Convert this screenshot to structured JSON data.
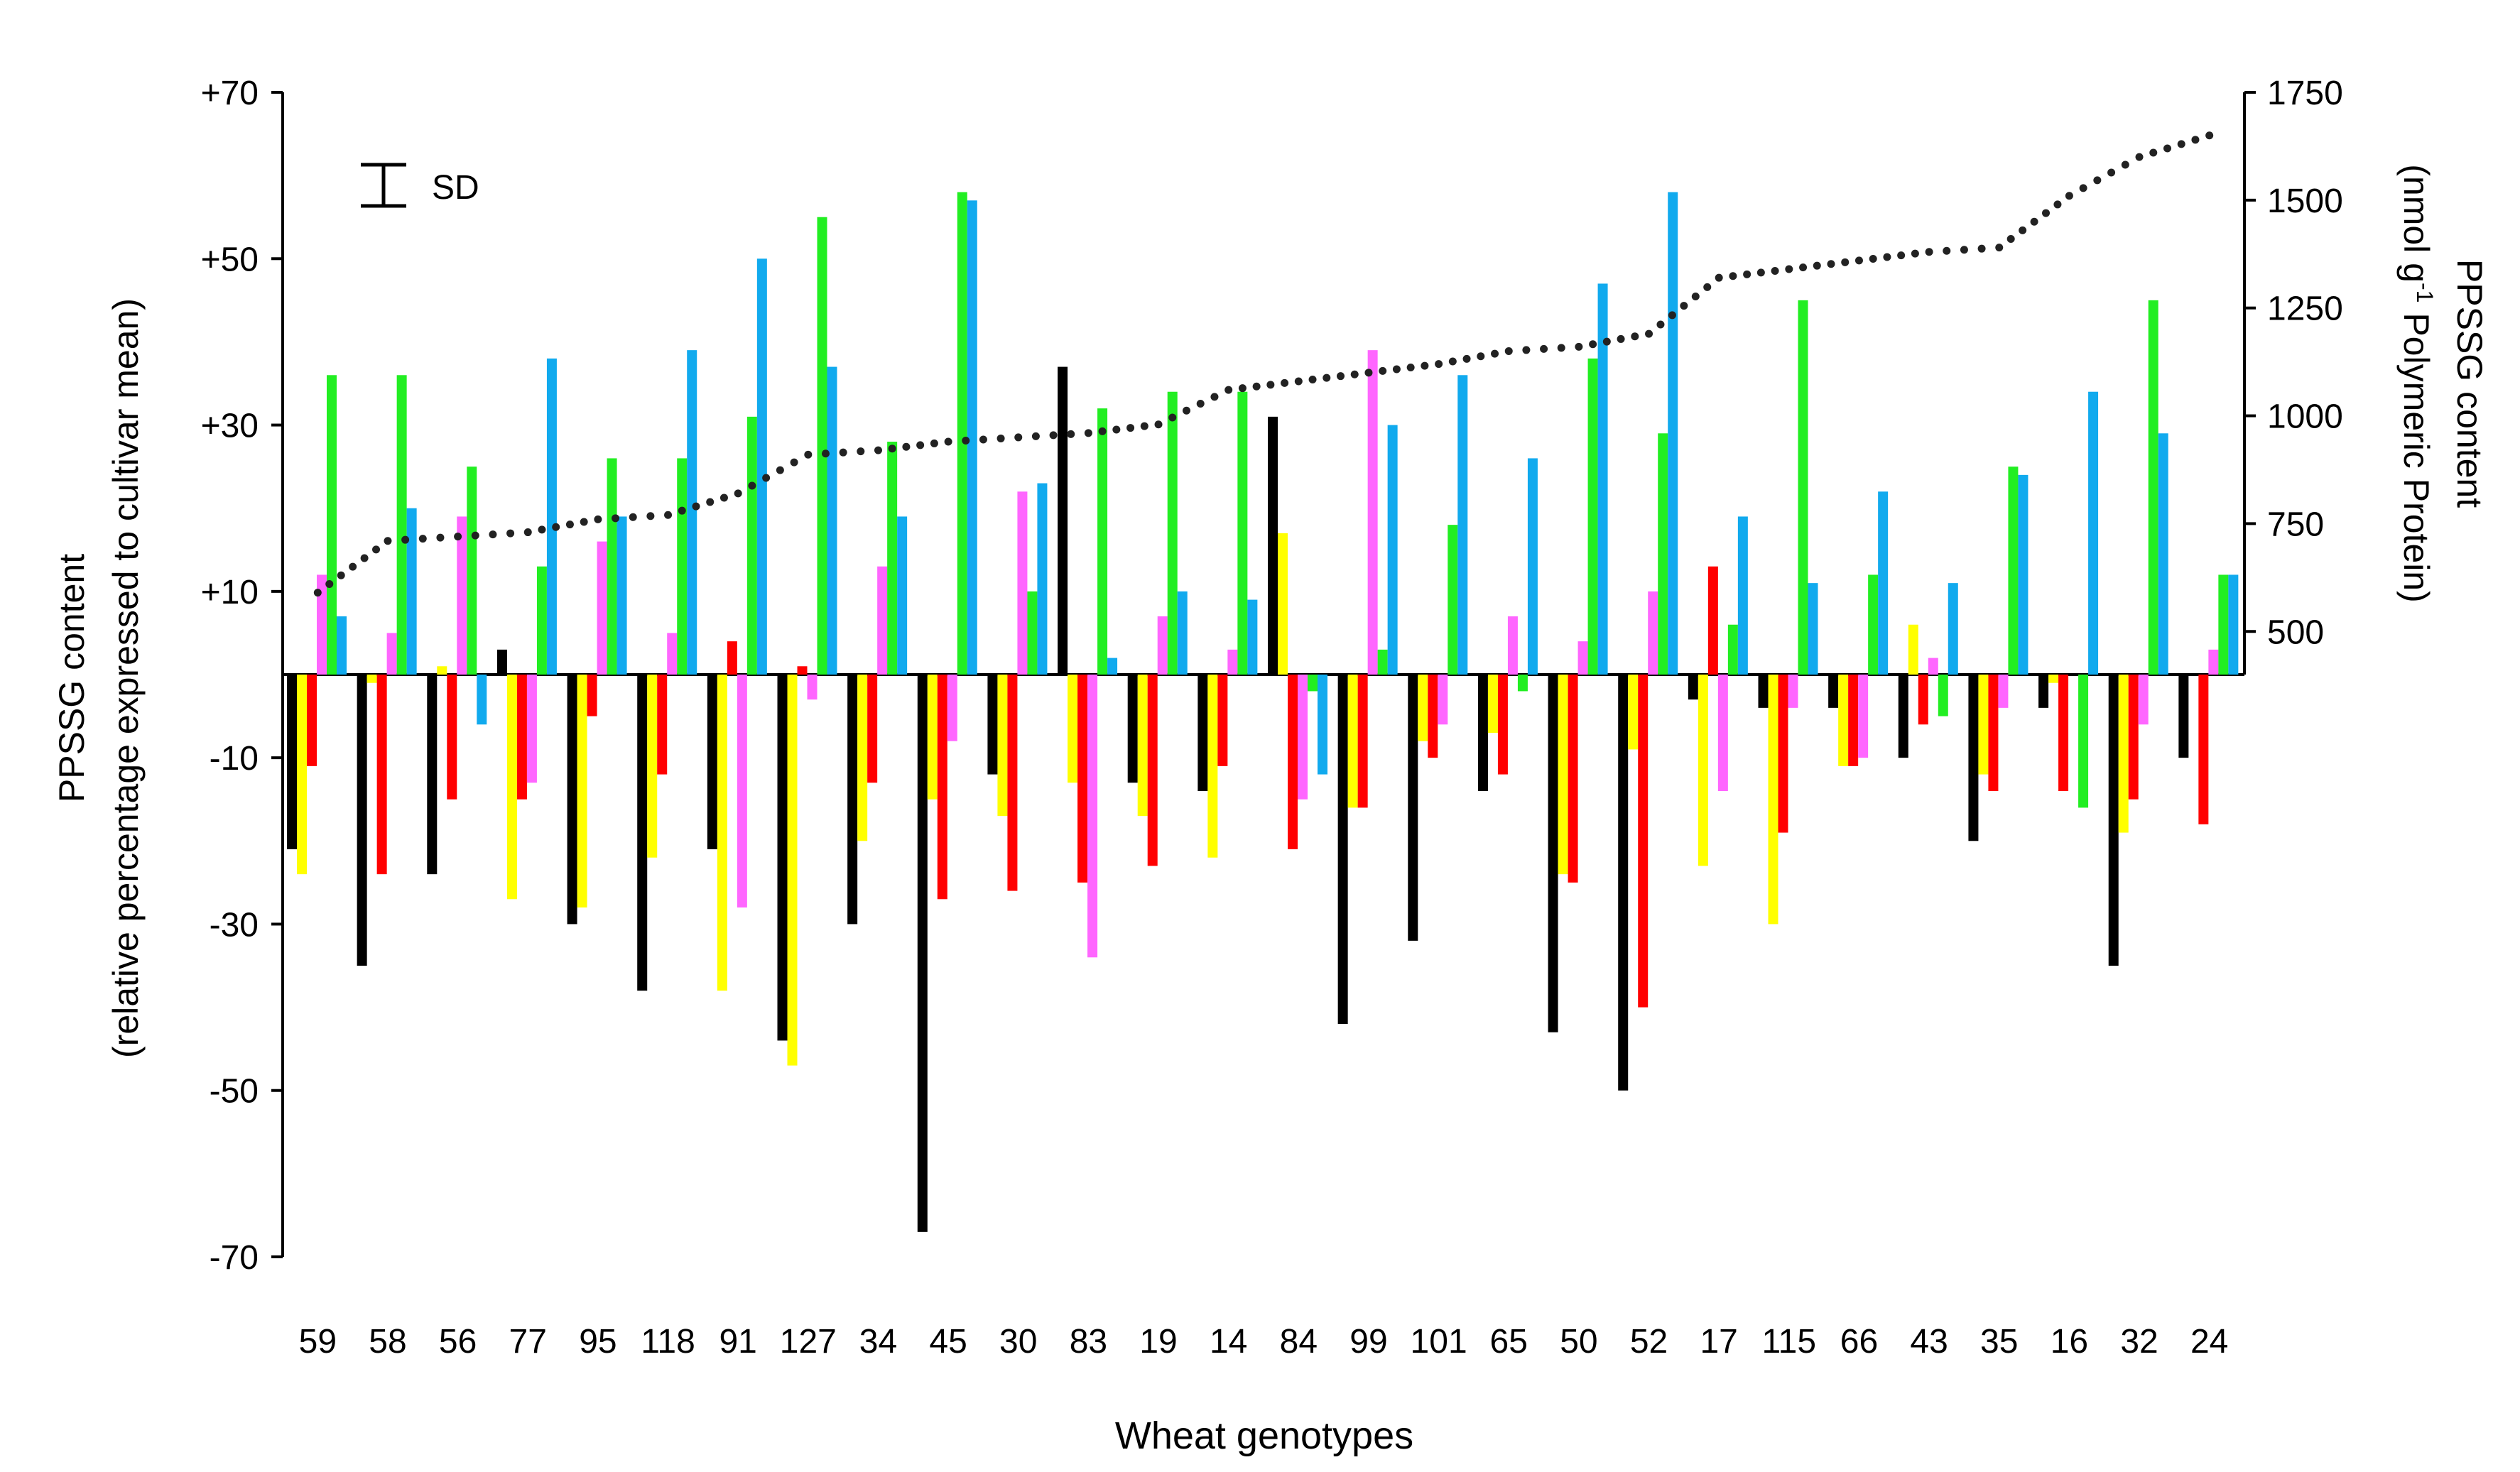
{
  "chart_data": {
    "type": "bar",
    "xlabel": "Wheat genotypes",
    "ylabel_left_line1": "PPSSG content",
    "ylabel_left_line2": "(relative percentage expressed to cultivar mean)",
    "ylabel_right_line1": "PPSSG content",
    "ylabel_right_line2_pre": "(nmol g",
    "ylabel_right_line2_sup": "-1",
    "ylabel_right_line2_post": " Polymeric Protein)",
    "legend_sd_label": "SD",
    "categories": [
      "59",
      "58",
      "56",
      "77",
      "95",
      "118",
      "91",
      "127",
      "34",
      "45",
      "30",
      "83",
      "19",
      "14",
      "84",
      "99",
      "101",
      "65",
      "50",
      "52",
      "17",
      "115",
      "66",
      "43",
      "35",
      "16",
      "32",
      "24"
    ],
    "ylim_left": [
      -70,
      70
    ],
    "yticks_left": [
      {
        "value": 70,
        "label": "+70"
      },
      {
        "value": 50,
        "label": "+50"
      },
      {
        "value": 30,
        "label": "+30"
      },
      {
        "value": 10,
        "label": "+10"
      },
      {
        "value": -10,
        "label": "-10"
      },
      {
        "value": -30,
        "label": "-30"
      },
      {
        "value": -50,
        "label": "-50"
      },
      {
        "value": -70,
        "label": "-70"
      }
    ],
    "ylim_right": [
      400,
      1750
    ],
    "yticks_right": [
      {
        "value": 1750,
        "label": "1750"
      },
      {
        "value": 1500,
        "label": "1500"
      },
      {
        "value": 1250,
        "label": "1250"
      },
      {
        "value": 1000,
        "label": "1000"
      },
      {
        "value": 750,
        "label": "750"
      },
      {
        "value": 500,
        "label": "500"
      }
    ],
    "series_colors": [
      "#000000",
      "#ffff00",
      "#ff0000",
      "#ff66ff",
      "#22ee22",
      "#11aaee"
    ],
    "series": [
      {
        "color": "#000000",
        "values": [
          -21,
          -35,
          -24,
          3,
          -30,
          -38,
          -21,
          -44,
          -30,
          -67,
          -12,
          37,
          -13,
          -14,
          31,
          -42,
          -32,
          -14,
          -43,
          -50,
          -3,
          -4,
          -4,
          -10,
          -20,
          -4,
          -35,
          -10
        ]
      },
      {
        "color": "#ffff00",
        "values": [
          -24,
          -1,
          1,
          -27,
          -28,
          -22,
          -38,
          -47,
          -20,
          -15,
          -17,
          -13,
          -17,
          -22,
          17,
          -16,
          -8,
          -7,
          -24,
          -9,
          -23,
          -30,
          -11,
          6,
          -12,
          -1,
          -19,
          0
        ]
      },
      {
        "color": "#ff0000",
        "values": [
          -11,
          -24,
          -15,
          -15,
          -5,
          -12,
          4,
          1,
          -13,
          -27,
          -26,
          -25,
          -23,
          -11,
          -21,
          -16,
          -10,
          -12,
          -25,
          -40,
          13,
          -19,
          -11,
          -6,
          -14,
          -14,
          -15,
          -18
        ]
      },
      {
        "color": "#ff66ff",
        "values": [
          12,
          5,
          19,
          -13,
          16,
          5,
          -28,
          -3,
          13,
          -8,
          22,
          -34,
          7,
          3,
          -15,
          39,
          -6,
          7,
          4,
          10,
          -14,
          -4,
          -10,
          2,
          -4,
          0,
          -6,
          3
        ]
      },
      {
        "color": "#22ee22",
        "values": [
          36,
          36,
          25,
          13,
          26,
          26,
          31,
          55,
          28,
          58,
          10,
          32,
          34,
          34,
          -2,
          3,
          18,
          -2,
          38,
          29,
          6,
          45,
          12,
          -5,
          25,
          -16,
          45,
          12
        ]
      },
      {
        "color": "#11aaee",
        "values": [
          7,
          20,
          -6,
          38,
          19,
          39,
          50,
          37,
          19,
          57,
          23,
          2,
          10,
          9,
          -12,
          30,
          36,
          26,
          47,
          58,
          19,
          11,
          22,
          11,
          24,
          34,
          29,
          12
        ]
      }
    ],
    "line_series": {
      "style": "dotted",
      "color": "#222222",
      "axis": "right",
      "values": [
        590,
        710,
        720,
        730,
        760,
        770,
        820,
        910,
        920,
        940,
        950,
        960,
        980,
        1060,
        1080,
        1100,
        1120,
        1150,
        1160,
        1190,
        1320,
        1340,
        1360,
        1380,
        1390,
        1510,
        1600,
        1650
      ]
    }
  }
}
